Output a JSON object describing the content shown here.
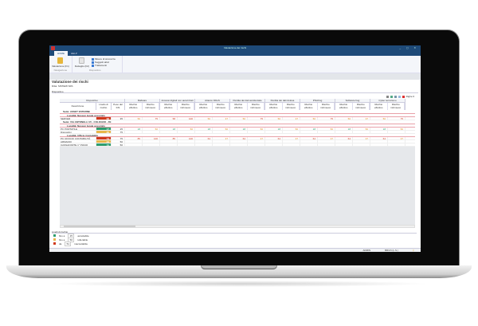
{
  "window": {
    "title": "Valutazione dei rischi",
    "controls": "_ ▢ ✕"
  },
  "tabs": [
    {
      "label": "HOME",
      "selected": true
    },
    {
      "label": "HELP",
      "selected": false
    }
  ],
  "ribbon": {
    "navigazione": {
      "label": "Navigazione",
      "buttons": [
        "Valutazione (F1)"
      ]
    },
    "dispositivo": {
      "label": "Dispositivo",
      "big": "Dettaglio (F2)",
      "items": [
        "Misure di sicurezza",
        "Soggetti attivi",
        "Trattamenti"
      ]
    }
  },
  "page": {
    "title": "Valutazione dei rischi",
    "ditta": "Ditta: SISTEMI SPA",
    "dispositivo_label": "Dispositivo",
    "righe": "Righe 6"
  },
  "table": {
    "group_dispositivo": "Dispositivo",
    "col_desc": "Descrizione",
    "col_livello": "Livello di rischio",
    "col_peso": "Peso del KIS",
    "eff": "Rischio effettivo",
    "intr": "Rischio intrinseco",
    "risks": [
      "Malware",
      "Accessi digitali non autorizzati",
      "Attacco DDoS",
      "Perdita dei dati accidentale",
      "Perdita dei dati dolosa",
      "Phishing",
      "Software bug",
      "Cyber terrorismo"
    ],
    "sedi": [
      {
        "label": "Sede: ASSET ESTERNE",
        "localita": [
          {
            "label": "Località: Nessun locale associato",
            "rows": [
              {
                "desc": "SERVER",
                "livello": 68,
                "level": "red",
                "peso": 35,
                "values": [
                  50,
                  75,
                  58,
                  100,
                  50,
                  37,
                  50,
                  75,
                  50,
                  37,
                  50,
                  75,
                  50,
                  37,
                  50,
                  75
                ]
              }
            ]
          }
        ]
      },
      {
        "label": "Sede: VIA ANTONELLI 15 - COLOGNO - FE",
        "localita": [
          {
            "label": "Località: Nessun locale associato",
            "rows": [
              {
                "desc": "PC PORTATILE",
                "livello": 17,
                "level": "green",
                "peso": 25,
                "values": [
                  18,
                  50,
                  18,
                  50,
                  18,
                  50,
                  18,
                  50,
                  18,
                  50,
                  18,
                  50,
                  18,
                  50,
                  18,
                  50
                ]
              },
              {
                "desc": "Dispositivi",
                "livello": 30,
                "level": "yellow",
                "peso": 75,
                "values": []
              }
            ]
          },
          {
            "label": "Località: Ufficio Contabilità",
            "rows": [
              {
                "desc": "PC UFFICIO CONTABILITÀ",
                "livello": 74,
                "level": "red",
                "peso": 75,
                "values": [
                  85,
                  100,
                  85,
                  100,
                  64,
                  37,
                  64,
                  37,
                  64,
                  37,
                  64,
                  37,
                  64,
                  37,
                  64,
                  37
                ]
              },
              {
                "desc": "ARMADIO",
                "livello": 34,
                "level": "yellow",
                "peso": 50,
                "values": []
              },
              {
                "desc": "CASSAFORTE 1° PIANO",
                "livello": 11,
                "level": "green",
                "peso": 50,
                "values": []
              }
            ]
          }
        ]
      }
    ]
  },
  "legend": {
    "title": "Livelli di rischio",
    "items": [
      {
        "prefix": "fino a",
        "value": "25",
        "label": "accettabile",
        "color": "#2e9e6e"
      },
      {
        "prefix": "fino a",
        "value": "50",
        "label": "tollerabile",
        "color": "#e8b64a"
      },
      {
        "prefix": "da",
        "value": "51",
        "label": "inaccettabile",
        "color": "#d0391c"
      }
    ]
  },
  "status": {
    "user": "ADMIN",
    "company": "BRUN (L.S.)"
  },
  "colors": {
    "titlebar": "#1e4a78",
    "green": "#2e9e6e",
    "yellow": "#e8b64a",
    "red": "#d0391c"
  }
}
